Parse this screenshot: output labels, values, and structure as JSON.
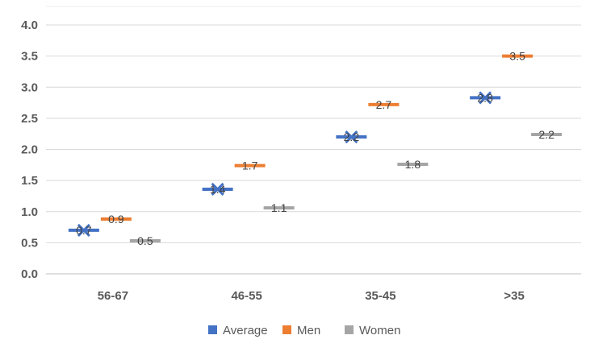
{
  "chart_data": {
    "type": "line",
    "title": "",
    "xlabel": "",
    "ylabel": "",
    "categories": [
      "56-67",
      "46-55",
      "35-45",
      ">35"
    ],
    "ylim": [
      0,
      4.0
    ],
    "yticks": [
      "0.0",
      "0.5",
      "1.0",
      "1.5",
      "2.0",
      "2.5",
      "3.0",
      "3.5",
      "4.0"
    ],
    "grid": true,
    "legend_position": "bottom",
    "series": [
      {
        "name": "Average",
        "color": "#4472C4",
        "values": [
          0.7,
          1.36,
          2.2,
          2.83
        ],
        "labels": [
          "0.7",
          "1.4",
          "2.2",
          "2.8"
        ]
      },
      {
        "name": "Men",
        "color": "#ED7D31",
        "values": [
          0.88,
          1.74,
          2.72,
          3.5
        ],
        "labels": [
          "0.9",
          "1.7",
          "2.7",
          "3.5"
        ]
      },
      {
        "name": "Women",
        "color": "#A5A5A5",
        "values": [
          0.53,
          1.06,
          1.76,
          2.24
        ],
        "labels": [
          "0.5",
          "1.1",
          "1.8",
          "2.2"
        ]
      }
    ]
  }
}
